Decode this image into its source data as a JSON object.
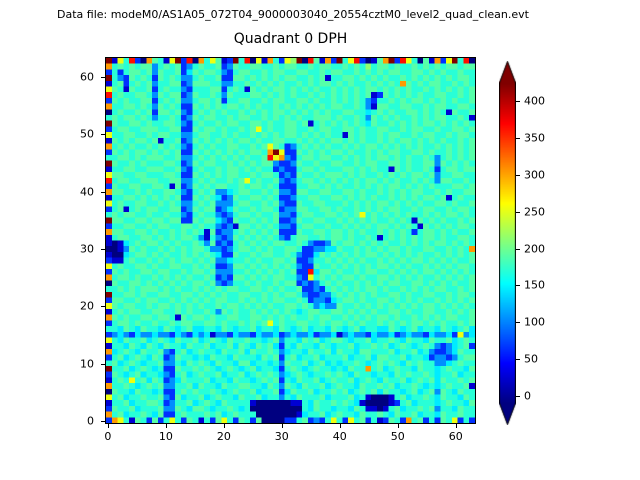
{
  "figure": {
    "annotation": "Data file: modeM0/AS1A05_072T04_9000003040_20554cztM0_level2_quad_clean.evt",
    "title": "Quadrant 0 DPH"
  },
  "chart_data": {
    "type": "heatmap",
    "title": "Quadrant 0 DPH",
    "x_ticks": [
      0,
      10,
      20,
      30,
      40,
      50,
      60
    ],
    "y_ticks": [
      0,
      10,
      20,
      30,
      40,
      50,
      60
    ],
    "x_range": [
      -0.5,
      63.5
    ],
    "y_range": [
      -0.5,
      63.5
    ],
    "grid_size": [
      64,
      64
    ],
    "colormap": "jet",
    "vmin": -10,
    "vmax": 425,
    "colorbar_ticks": [
      0,
      50,
      100,
      150,
      200,
      250,
      300,
      350,
      400
    ],
    "colorbar_extend": "both",
    "value_key": {
      "0": -15,
      "1": 25,
      "2": 65,
      "3": 105,
      "4": 145,
      "5": 170,
      "6": 190,
      "7": 215,
      "8": 255,
      "9": 305,
      "a": 365,
      "b": 425
    },
    "grid_note": "Estimated DPH counts; each char maps to approx value via value_key; rows ordered y=63 (top) to y=0 (bottom), cols x=0..63 left to right.",
    "grid_rows_top_to_bottom": [
      "b185a2096518b2a095861 2b5a08195287b0a6192b58a20169b2a85061928b5a0",
      "9565656635656235655623655665565665565665565657566565565656566566",
      "2525665636556246566532566556566556655656655656565665566565655655",
      "b532656526565335655622665656565665565615566565656556565656565665",
      "1562565635566236665533556565656556565665656556565659656566556565",
      "8651655625655325556625651656566565656556565656656565655656565656",
      "a565566536566236556536555665656565565656565656126565656556655656",
      "2656556625656335665625566556566556656556565653255656566565656556",
      "9556656536565226565656656565565656565656655653166556655656655665",
      "0565565626656325656565565656566565656565566554565655665656516556",
      "5656656535565236566556566556565656556665655653656565565656655651",
      "b655665655665325655656655665655665615656565654655656565665656565",
      "2566556665566226566565565685655665565665566565566556566556556656",
      "8556655656655335665565655656565665656565516565565665565665565665",
      "1656566561556236565656566565566556565656656565565656656565655656",
      "9565655656565325656556655656865235656565565656656565656556565656",
      "2656566565656226565656565665 9b8226565656656556565665566565565656",
      "5566565666556335656565656556a893256656655656565665656556535656 56",
      "b655656555665236566556565656632236556556655656655665655663656565",
      "1556655666556325655656656565523225665655566565655165655652566566",
      "8665566555665226565656655656652326556566656565565656566563556655",
      "a566556665566335656556568565563235665656565656656565565653665565",
      "2655665566516236565665565665652225566565655656565665656565556656",
      "9665565655665325656334566556563326655665566565565656566556565566",
      "1556656565656226565423655665652235566556656565655656565665615655",
      "8565566556565335656333566556563226556655565656566565656556656556",
      "2561565665566236566234655656652336655665655656565665565665565665",
      "5656655655655325655323566565563325665566565685656565655656566565",
      "b665566566566226566432655656562236556655656565655656516565655656",
      "2556655656655665655323166565653325665565565656566565651656565665",
      "9665566565565656516233565656562226556656656565565656525665656556",
      "1566556656565665315323656565653256655656656556515656565665655665",
      "1014565665656556536232565656566556532236566565656556565656656565",
      "0013656556565656653323566565655665223344655656565665655665565659",
      "1004566565655656565422655656655653224656565656656565656556565656",
      "2115655656565665656334556565566562235565656565565656566565656556",
      "8565566565566556565223665656565653226556565656566565655656565665",
      "2656556656655656656333556565 6565622a46656556566556565656 65656565",
      "9566565565656565565232665656566553285656566565566565656556565656",
      "0655665656565656656323556565565662323565655656565665566565656556",
      "5565656665656556565656655665656556223256565656656556565656655656",
      "b556656556655665656565566556565665322335656565655665655665565665",
      "2665565665565656565665565656566556523324566565566565656556565656",
      "8656655656656565655656656565655665653433655656565656565665656565",
      "1565665566556565565365655656565654566556656565655665655665565656",
      "9656556656651656656556655665656565565665565656566565565656566556",
      "2566565565565665566565565656856556655656656565565656566565655656",
      "5546546554654564455465455645546545645546545645544654564554654564",
      "2343243343324324341332433243342343342334134332433423433243342834",
      "8546556456546556456546556554563554656456654556455654655465564565",
      "1554654654655465564556465465642546554654556455656456545653234562",
      "9456546556325645655465564655653455465564655466555645564532234655",
      "2564565465236554546554655546562564556455564556466556455423323566",
      "5645654556335465654655466455453655645645455654565654656553345655",
      "b556456545226556565456545645542565456554546559564565546554565546",
      "2654564554325645655645564565653456545565654655455465655654556455",
      "1565856465234655564554655456562546556456556456546556456564655656",
      "9556545656335564655465566554653654655645655465565645565454565561",
      "0655465545225656556545655645562465564556564565646554564563654655",
      "8564556556326455645655465564553546555645556451000156455654655465",
      "1556455665235564565465555100000011546556565410000125645554565546",
      "2655645556336546654556545000000000546554554651101564556563554655",
      "9564556546225655565645655500000001455645655465565465564554655655",
      "2985165262585265152685265260000225623258528562512652956252658252"
    ]
  }
}
